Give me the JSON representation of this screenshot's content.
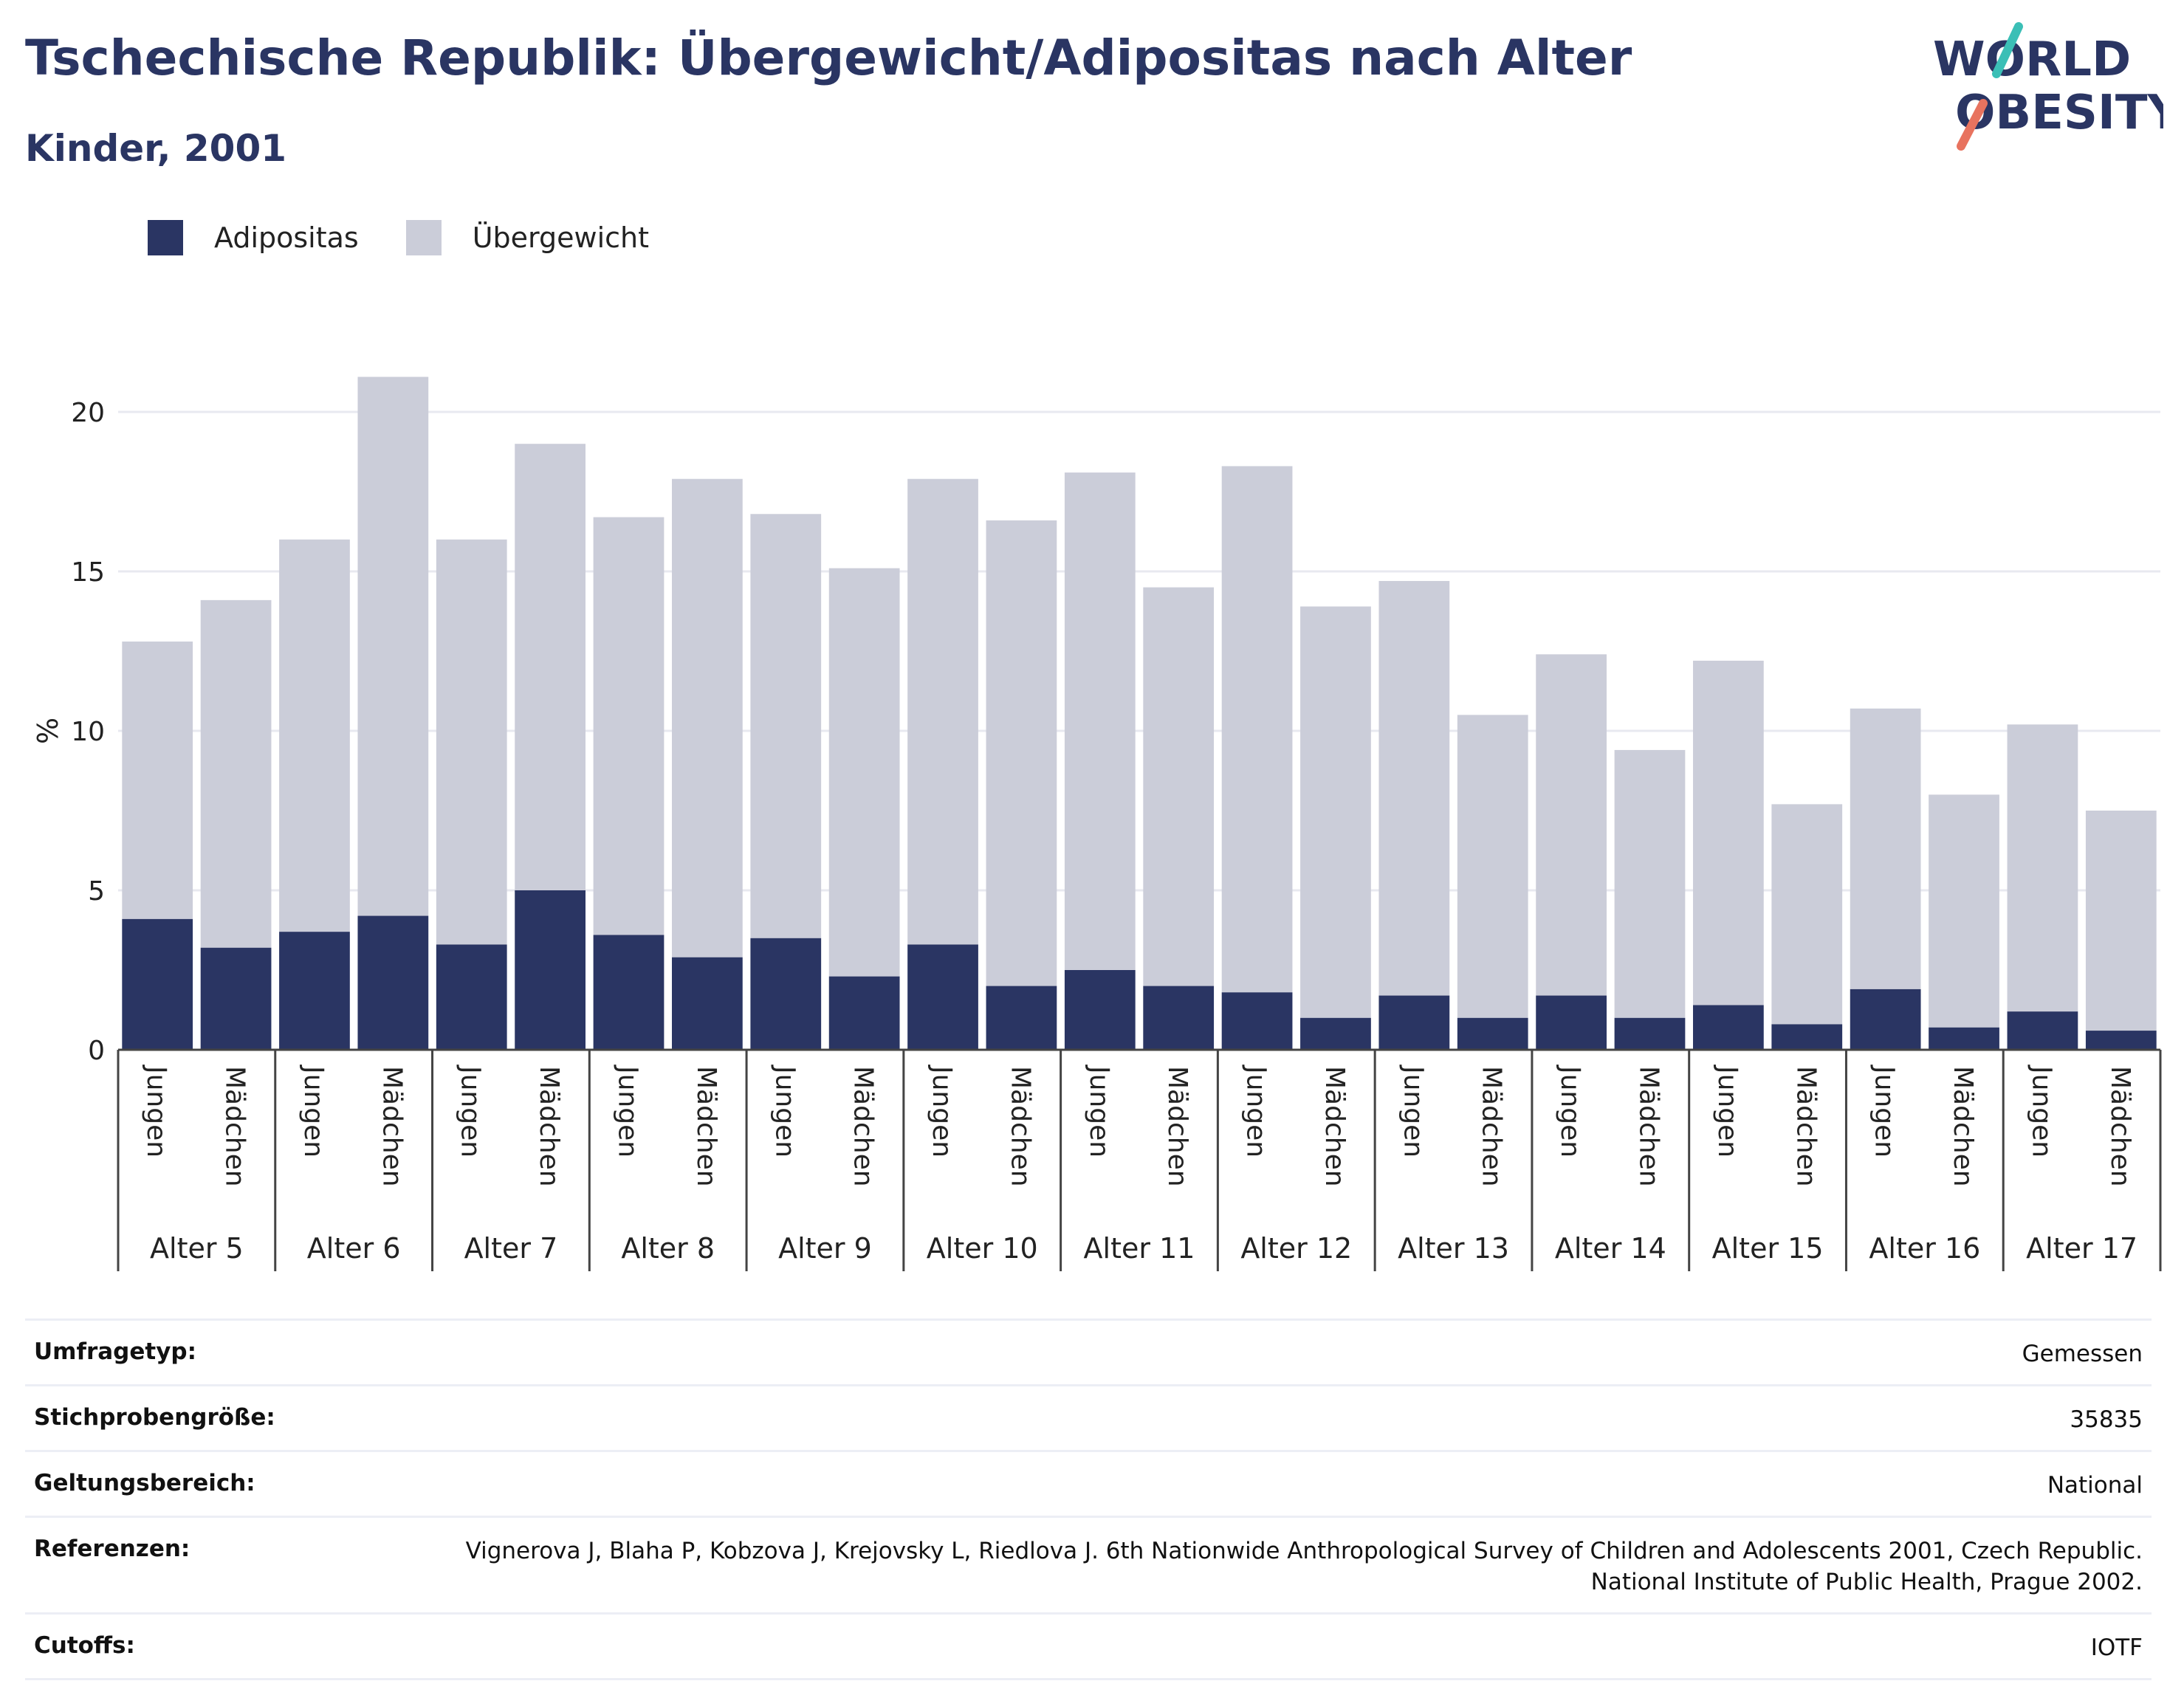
{
  "header": {
    "title": "Tschechische Republik: Übergewicht/Adipositas nach Alter",
    "subtitle": "Kinder, 2001"
  },
  "logo": {
    "line1": "WORLD",
    "line2": "OBESITY"
  },
  "colors": {
    "obesity": "#2a3563",
    "overweight": "#cbcdd9",
    "accent_teal": "#3bbfb6",
    "accent_coral": "#e8735f"
  },
  "legend": [
    {
      "label": "Adipositas",
      "color": "#2a3563"
    },
    {
      "label": "Übergewicht",
      "color": "#cbcdd9"
    }
  ],
  "chart_data": {
    "type": "bar",
    "stacked": true,
    "ylabel": "%",
    "ylim": [
      0,
      22
    ],
    "yticks": [
      0,
      5,
      10,
      15,
      20
    ],
    "grid": true,
    "legend_position": "top-left",
    "groups": [
      "Alter 5",
      "Alter 6",
      "Alter 7",
      "Alter 8",
      "Alter 9",
      "Alter 10",
      "Alter 11",
      "Alter 12",
      "Alter 13",
      "Alter 14",
      "Alter 15",
      "Alter 16",
      "Alter 17"
    ],
    "subcategories": [
      "Jungen",
      "Mädchen"
    ],
    "series": [
      {
        "name": "Adipositas",
        "values": [
          4.1,
          3.2,
          3.7,
          4.2,
          3.3,
          5.0,
          3.6,
          2.9,
          3.5,
          2.3,
          3.3,
          2.0,
          2.5,
          2.0,
          1.8,
          1.0,
          1.7,
          1.0,
          1.7,
          1.0,
          1.4,
          0.8,
          1.9,
          0.7,
          1.2,
          0.6
        ]
      },
      {
        "name": "Übergewicht",
        "values": [
          8.7,
          10.9,
          12.3,
          16.9,
          12.7,
          14.0,
          13.1,
          15.0,
          13.3,
          12.8,
          14.6,
          14.6,
          15.6,
          12.5,
          16.5,
          12.9,
          13.0,
          9.5,
          10.7,
          8.4,
          10.8,
          6.9,
          8.8,
          7.3,
          9.0,
          6.9
        ]
      }
    ]
  },
  "meta": [
    {
      "label": "Umfragetyp:",
      "value": "Gemessen"
    },
    {
      "label": "Stichprobengröße:",
      "value": "35835"
    },
    {
      "label": "Geltungsbereich:",
      "value": "National"
    },
    {
      "label": "Referenzen:",
      "value": "Vignerova J, Blaha P, Kobzova J, Krejovsky L, Riedlova J. 6th Nationwide Anthropological Survey of Children and Adolescents 2001, Czech Republic. National Institute of Public Health, Prague 2002."
    },
    {
      "label": "Cutoffs:",
      "value": "IOTF"
    }
  ]
}
